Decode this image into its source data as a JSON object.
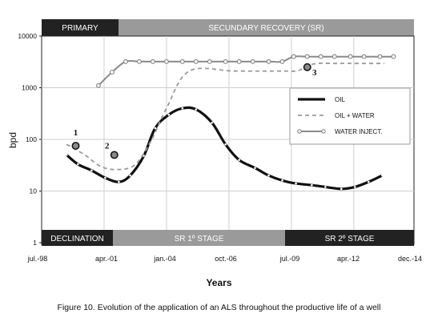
{
  "chart_data": {
    "type": "line",
    "y_scale": "log",
    "ylim": [
      1,
      10000
    ],
    "y_ticks": [
      "10000",
      "1000",
      "100",
      "10",
      "1"
    ],
    "ylabel": "bpd",
    "xlabel": "Years",
    "x_ticks": [
      "jul.-98",
      "apr.-01",
      "jan.-04",
      "oct.-06",
      "jul.-09",
      "apr.-12",
      "dec.-14"
    ],
    "grid": true,
    "legend_position": "right",
    "top_bands": [
      {
        "label": "PRIMARY",
        "color": "#222222"
      },
      {
        "label": "SECUNDARY RECOVERY (SR)",
        "color": "#9a9a9a"
      }
    ],
    "bottom_bands": [
      {
        "label": "DECLINATION",
        "color": "#222222"
      },
      {
        "label": "SR 1º STAGE",
        "color": "#9a9a9a"
      },
      {
        "label": "SR 2º STAGE",
        "color": "#222222"
      }
    ],
    "point_markers": [
      {
        "label": "1",
        "x": 2000.0,
        "y": 75
      },
      {
        "label": "2",
        "x": 2001.7,
        "y": 50
      },
      {
        "label": "3",
        "x": 2010.2,
        "y": 2500
      }
    ],
    "series": [
      {
        "name": "OIL",
        "color": "#111111",
        "style": "solid-bold",
        "x": [
          1999.6,
          2000.1,
          2000.7,
          2001.3,
          2001.9,
          2002.4,
          2003.0,
          2003.5,
          2004.1,
          2004.7,
          2005.3,
          2006.0,
          2006.6,
          2007.2,
          2007.9,
          2008.5,
          2009.1,
          2009.7,
          2010.4,
          2011.0,
          2011.7,
          2012.3,
          2012.9,
          2013.5
        ],
        "y": [
          50,
          33,
          25,
          18,
          15,
          20,
          48,
          165,
          300,
          400,
          380,
          210,
          80,
          40,
          28,
          20,
          16,
          14,
          13,
          12,
          11,
          12,
          15,
          20
        ]
      },
      {
        "name": "OIL + WATER",
        "color": "#9a9a9a",
        "style": "dashed",
        "x": [
          1999.6,
          2000.4,
          2001.1,
          2001.8,
          2002.6,
          2003.3,
          2004.0,
          2005.0,
          2007.0,
          2009.1,
          2009.8,
          2010.5,
          2011.5,
          2012.5,
          2013.6
        ],
        "y": [
          80,
          50,
          30,
          26,
          32,
          90,
          400,
          2100,
          2100,
          2100,
          2150,
          2900,
          2950,
          2950,
          2950
        ]
      },
      {
        "name": "WATER INJECT.",
        "color": "#8a8a8a",
        "style": "solid-markers",
        "x": [
          2001.0,
          2001.6,
          2002.2,
          2002.8,
          2003.4,
          2004.0,
          2004.7,
          2005.3,
          2005.9,
          2006.6,
          2007.2,
          2007.8,
          2008.5,
          2009.1,
          2009.6,
          2010.2,
          2010.8,
          2011.4,
          2012.1,
          2012.7,
          2013.4,
          2014.0
        ],
        "y": [
          1100,
          2000,
          3200,
          3200,
          3200,
          3200,
          3200,
          3200,
          3200,
          3200,
          3200,
          3200,
          3200,
          3200,
          4000,
          4000,
          4000,
          4000,
          4000,
          4000,
          4000,
          4000
        ]
      }
    ]
  },
  "caption": "Figure 10. Evolution of the application of an ALS throughout the productive life of a well"
}
